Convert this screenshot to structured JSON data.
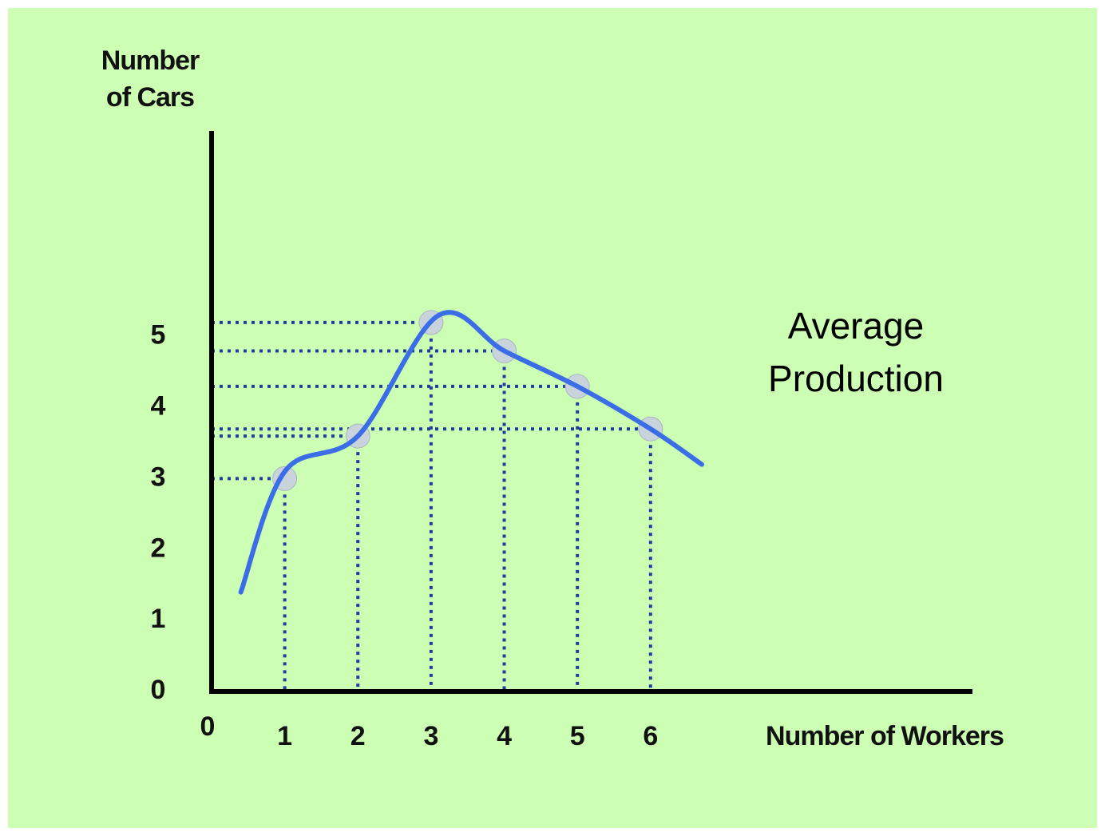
{
  "chart_data": {
    "type": "line",
    "title": [
      "Average",
      "Production"
    ],
    "y_label": [
      "Number",
      "of Cars"
    ],
    "x_label": "Number of Workers",
    "xlim": [
      0,
      10.4
    ],
    "ylim": [
      0,
      7.9
    ],
    "xticks": [
      0,
      1,
      2,
      3,
      4,
      5,
      6
    ],
    "yticks": [
      0,
      1,
      2,
      3,
      4,
      5
    ],
    "curve": {
      "color": "#3b6ee6",
      "x": [
        0.4,
        1,
        2,
        3.1,
        4,
        5,
        6,
        6.7
      ],
      "values": [
        1.4,
        3.1,
        3.6,
        5.3,
        4.8,
        4.3,
        3.7,
        3.2
      ]
    },
    "points": {
      "color": "#c9d3dc",
      "guide_color": "#1f3d9e",
      "x": [
        1,
        2,
        3,
        4,
        5,
        6
      ],
      "values": [
        3.0,
        3.6,
        5.2,
        4.8,
        4.3,
        3.7
      ]
    }
  }
}
